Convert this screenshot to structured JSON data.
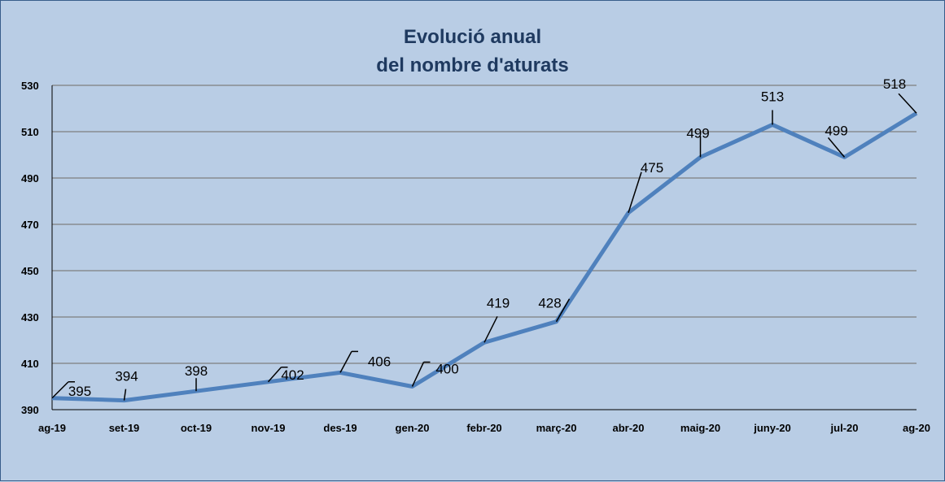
{
  "chart_data": {
    "type": "line",
    "title": "Evolució anual",
    "subtitle": "del nombre d'aturats",
    "categories": [
      "ag-19",
      "set-19",
      "oct-19",
      "nov-19",
      "des-19",
      "gen-20",
      "febr-20",
      "març-20",
      "abr-20",
      "maig-20",
      "juny-20",
      "jul-20",
      "ag-20"
    ],
    "series": [
      {
        "values": [
          395,
          394,
          398,
          402,
          406,
          400,
          419,
          428,
          475,
          499,
          513,
          499,
          518
        ]
      }
    ],
    "ylim": [
      390,
      530
    ],
    "yticks": [
      390,
      410,
      430,
      450,
      470,
      490,
      510,
      530
    ],
    "grid": true,
    "data_labels": true,
    "colors": {
      "line": "#4f81bd",
      "grid": "#7f7f7f",
      "background": "#b9cde5",
      "title": "#1f3a60"
    }
  }
}
